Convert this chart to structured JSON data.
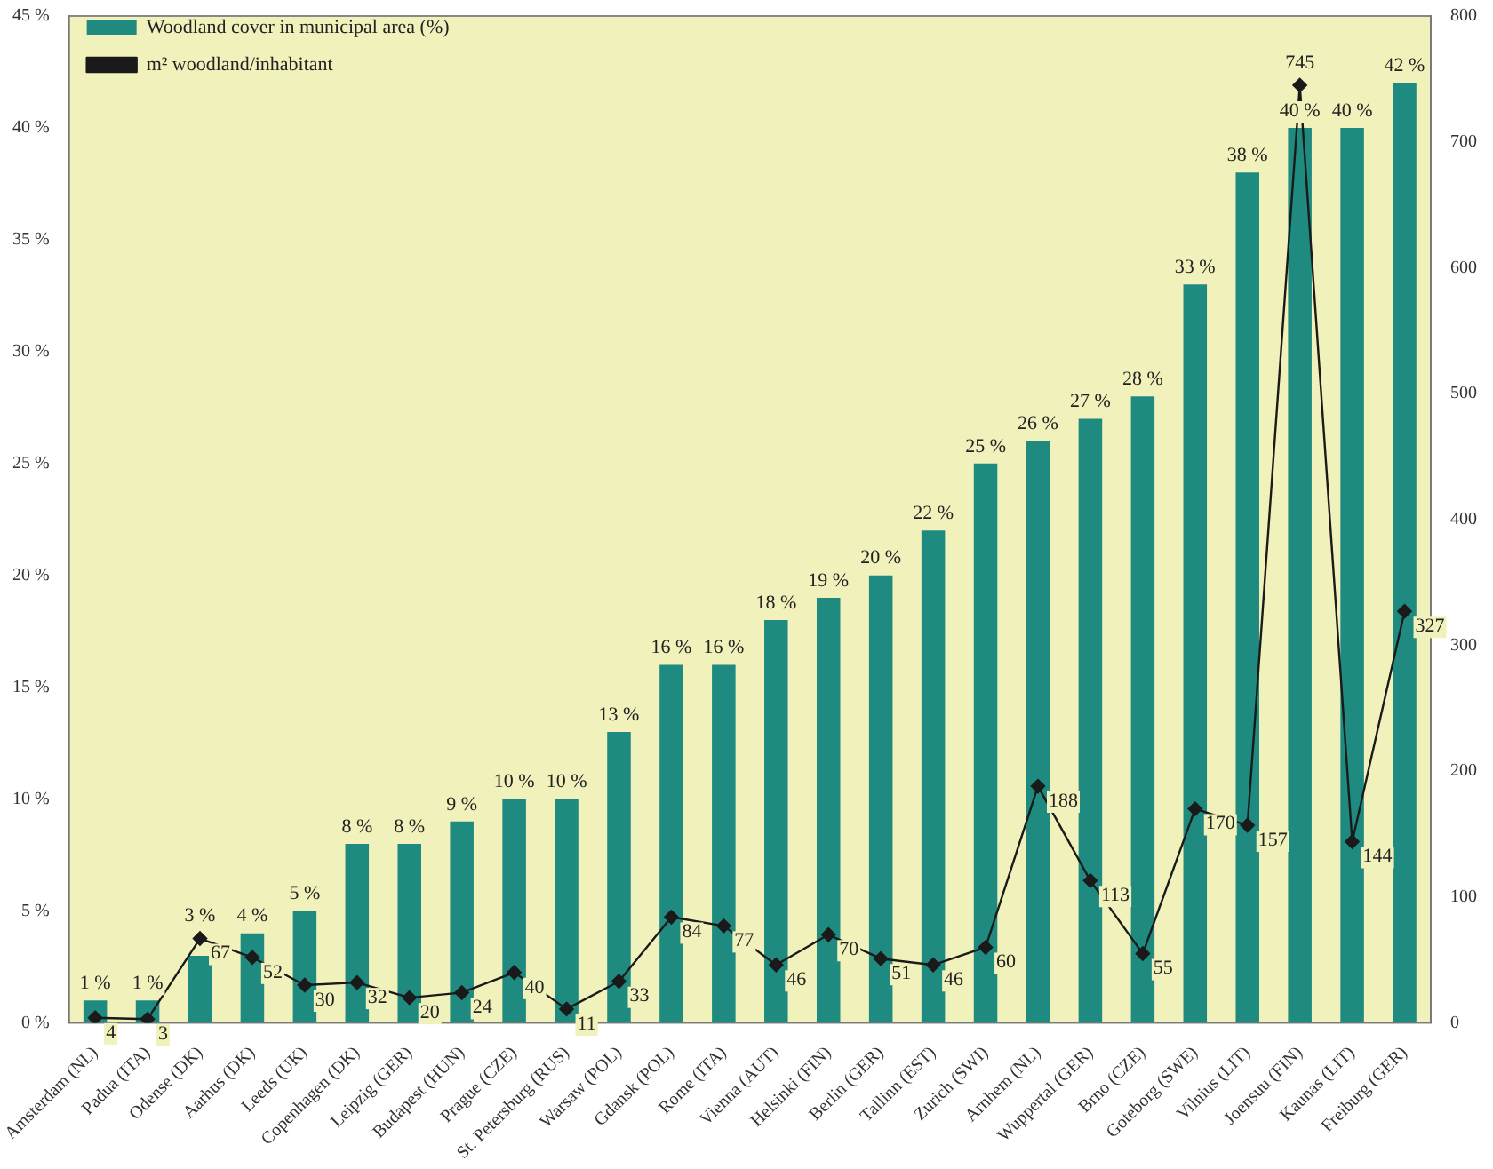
{
  "chart_data": {
    "type": "bar",
    "categories": [
      "Amsterdam (NL)",
      "Padua (ITA)",
      "Odense (DK)",
      "Aarhus (DK)",
      "Leeds (UK)",
      "Copenhagen (DK)",
      "Leipzig (GER)",
      "Budapest (HUN)",
      "Prague (CZE)",
      "St. Petersburg (RUS)",
      "Warsaw (POL)",
      "Gdansk (POL)",
      "Rome (ITA)",
      "Vienna (AUT)",
      "Helsinki (FIN)",
      "Berlin (GER)",
      "Tallinn (EST)",
      "Zurich (SWI)",
      "Arnhem (NL)",
      "Wuppertal (GER)",
      "Brno (CZE)",
      "Goteborg (SWE)",
      "Vilnius (LIT)",
      "Joensuu (FIN)",
      "Kaunas (LIT)",
      "Freiburg (GER)"
    ],
    "series": [
      {
        "name": "Woodland cover in municipal area (%)",
        "color": "#1f8a80",
        "values": [
          1,
          1,
          3,
          4,
          5,
          8,
          8,
          9,
          10,
          10,
          13,
          16,
          16,
          18,
          19,
          20,
          22,
          25,
          26,
          27,
          28,
          33,
          38,
          40,
          40,
          42
        ],
        "value_labels": [
          "1 %",
          "1 %",
          "3 %",
          "4 %",
          "5 %",
          "8 %",
          "8 %",
          "9 %",
          "10 %",
          "10 %",
          "13 %",
          "16 %",
          "16 %",
          "18 %",
          "19 %",
          "20 %",
          "22 %",
          "25 %",
          "26 %",
          "27 %",
          "28 %",
          "33 %",
          "38 %",
          "40 %",
          "40 %",
          "42 %"
        ]
      },
      {
        "name": "m² woodland/inhabitant",
        "type": "line",
        "axis": "y2",
        "color": "#1a1a1a",
        "values": [
          4,
          3,
          67,
          52,
          30,
          32,
          20,
          24,
          40,
          11,
          33,
          84,
          77,
          46,
          70,
          51,
          46,
          60,
          188,
          113,
          55,
          170,
          157,
          745,
          144,
          327
        ],
        "value_labels": [
          "4",
          "3",
          "67",
          "52",
          "30",
          "32",
          "20",
          "24",
          "40",
          "11",
          "33",
          "84",
          "77",
          "46",
          "70",
          "51",
          "46",
          "60",
          "188",
          "113",
          "55",
          "170",
          "157",
          "745",
          "144",
          "327"
        ]
      }
    ],
    "ylim": [
      0,
      45
    ],
    "yticks": [
      {
        "value": 0,
        "label": "0 %"
      },
      {
        "value": 5,
        "label": "5 %"
      },
      {
        "value": 10,
        "label": "10 %"
      },
      {
        "value": 15,
        "label": "15 %"
      },
      {
        "value": 20,
        "label": "20 %"
      },
      {
        "value": 25,
        "label": "25 %"
      },
      {
        "value": 30,
        "label": "30 %"
      },
      {
        "value": 35,
        "label": "35 %"
      },
      {
        "value": 40,
        "label": "40 %"
      },
      {
        "value": 45,
        "label": "45 %"
      }
    ],
    "y2lim": [
      0,
      800
    ],
    "y2ticks": [
      0,
      100,
      200,
      300,
      400,
      500,
      600,
      700,
      800
    ],
    "legend": "top left",
    "grid": false,
    "marker": "diamond",
    "line_style": "solid"
  }
}
